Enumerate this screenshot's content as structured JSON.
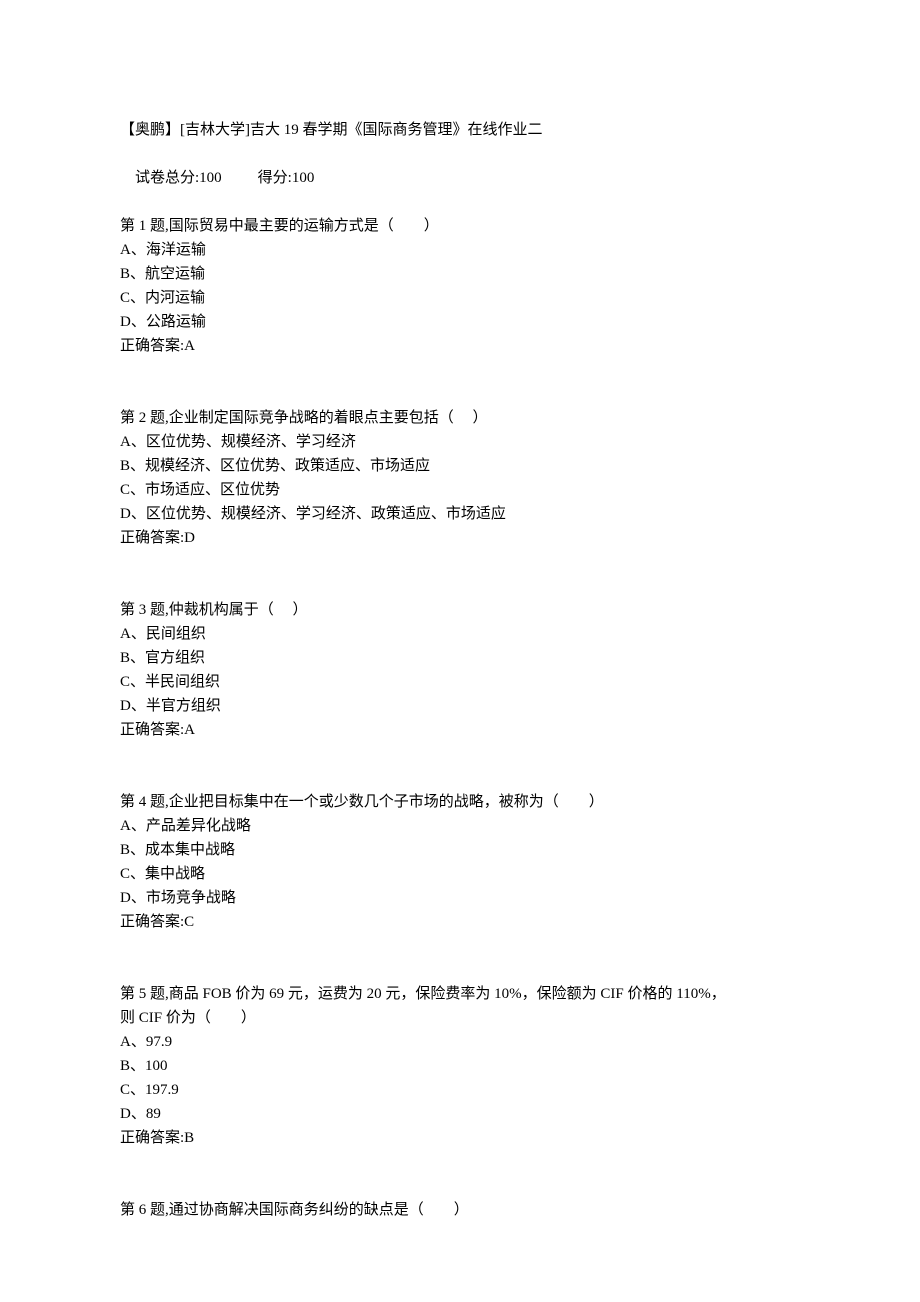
{
  "header": {
    "title": "【奥鹏】[吉林大学]吉大 19 春学期《国际商务管理》在线作业二",
    "score_total_label": "试卷总分:100",
    "score_got_label": "得分:100"
  },
  "questions": [
    {
      "prompt": "第 1 题,国际贸易中最主要的运输方式是（　　）",
      "options": [
        "A、海洋运输",
        "B、航空运输",
        "C、内河运输",
        "D、公路运输"
      ],
      "answer": "正确答案:A"
    },
    {
      "prompt": "第 2 题,企业制定国际竞争战略的着眼点主要包括（　 ）",
      "options": [
        "A、区位优势、规模经济、学习经济",
        "B、规模经济、区位优势、政策适应、市场适应",
        "C、市场适应、区位优势",
        "D、区位优势、规模经济、学习经济、政策适应、市场适应"
      ],
      "answer": "正确答案:D"
    },
    {
      "prompt": "第 3 题,仲裁机构属于（　 ）",
      "options": [
        "A、民间组织",
        "B、官方组织",
        "C、半民间组织",
        "D、半官方组织"
      ],
      "answer": "正确答案:A"
    },
    {
      "prompt": "第 4 题,企业把目标集中在一个或少数几个子市场的战略，被称为（　　）",
      "options": [
        "A、产品差异化战略",
        "B、成本集中战略",
        "C、集中战略",
        "D、市场竞争战略"
      ],
      "answer": "正确答案:C"
    },
    {
      "prompt_lines": [
        "第 5 题,商品 FOB 价为 69 元，运费为 20 元，保险费率为 10%，保险额为 CIF 价格的 110%，",
        "则 CIF 价为（　　）"
      ],
      "options": [
        "A、97.9",
        "B、100",
        "C、197.9",
        "D、89"
      ],
      "answer": "正确答案:B"
    },
    {
      "prompt": "第 6 题,通过协商解决国际商务纠纷的缺点是（　　）"
    }
  ]
}
